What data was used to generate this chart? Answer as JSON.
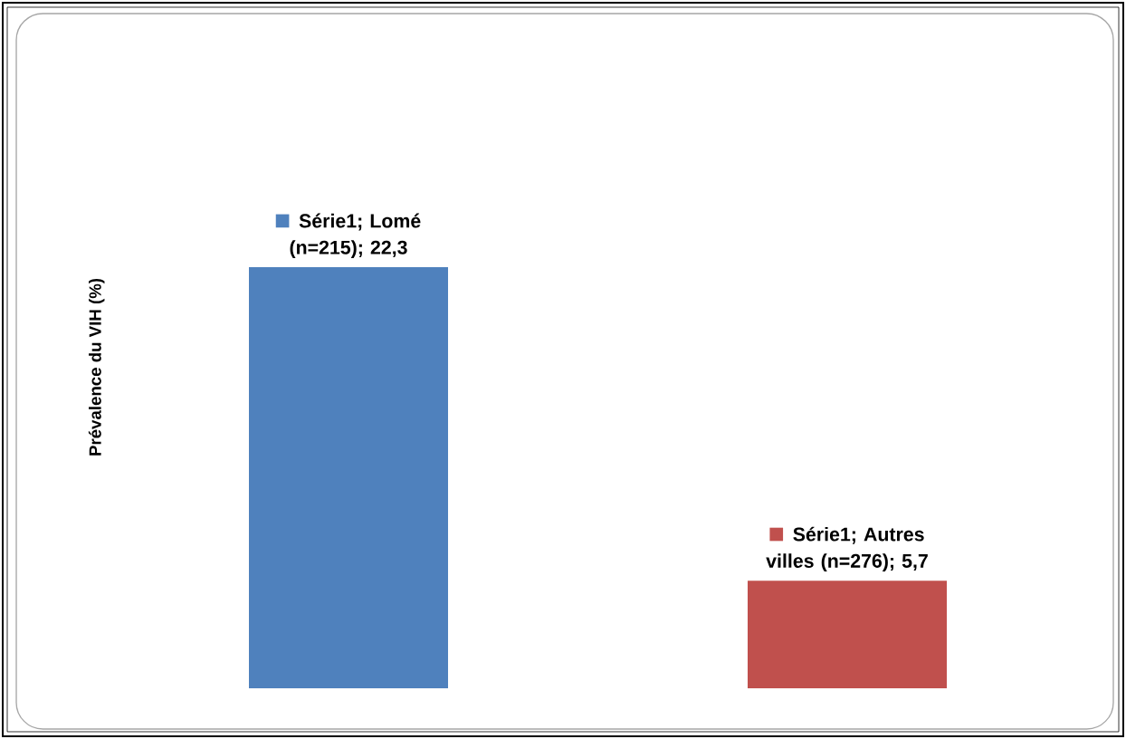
{
  "chart_data": {
    "type": "bar",
    "ylabel": "Prévalence du VIH (%)",
    "categories": [
      null,
      null
    ],
    "values": [
      22.3,
      5.7
    ],
    "colors": [
      "#4f81bd",
      "#c0504d"
    ],
    "value_labels": [
      "Série1; Lomé (n=215); 22,3",
      "Série1; Autres villes (n=276); 5,7"
    ]
  }
}
